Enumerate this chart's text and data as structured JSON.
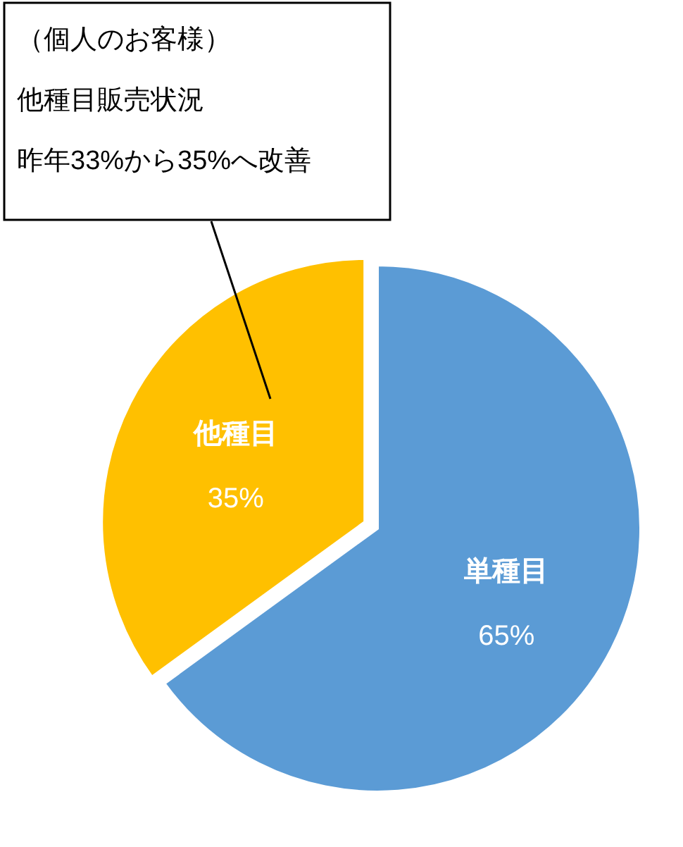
{
  "chart_data": {
    "type": "pie",
    "categories": [
      "単種目",
      "他種目"
    ],
    "values": [
      65,
      35
    ],
    "colors": [
      "#5b9bd5",
      "#ffc000"
    ],
    "value_labels": [
      "65%",
      "35%"
    ],
    "annotations": [
      "（個人のお客様）",
      "他種目販売状況",
      "昨年33%から35%へ改善"
    ]
  }
}
